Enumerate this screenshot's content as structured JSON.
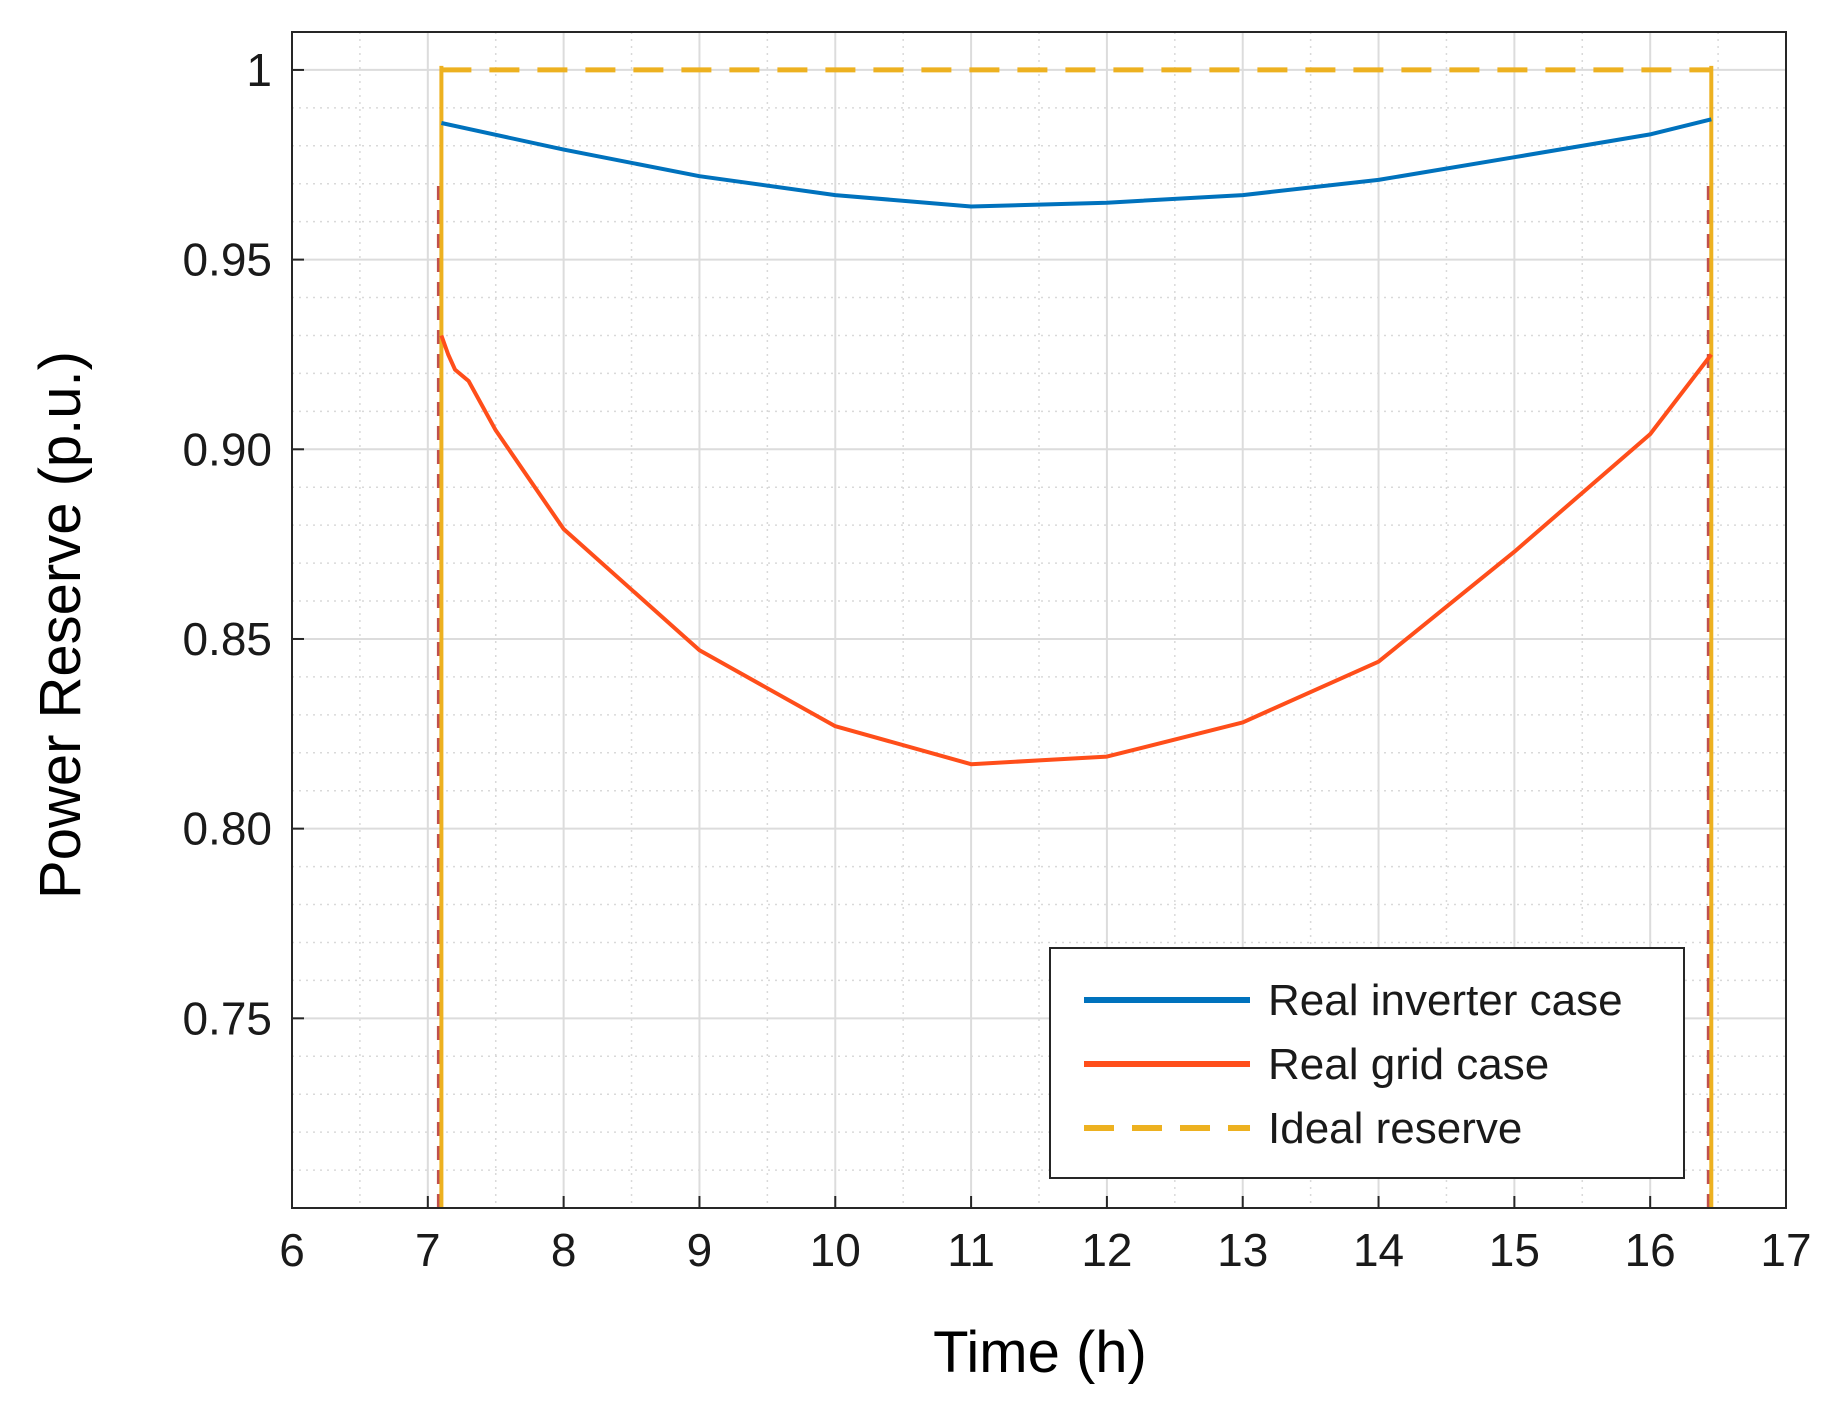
{
  "chart_data": {
    "type": "line",
    "title": "",
    "xlabel": "Time (h)",
    "ylabel": "Power Reserve (p.u.)",
    "xlim": [
      6,
      17
    ],
    "ylim": [
      0.7,
      1.01
    ],
    "x_ticks": [
      6,
      7,
      8,
      9,
      10,
      11,
      12,
      13,
      14,
      15,
      16,
      17
    ],
    "x_tick_labels": [
      "6",
      "7",
      "8",
      "9",
      "10",
      "11",
      "12",
      "13",
      "14",
      "15",
      "16",
      "17"
    ],
    "y_ticks": [
      0.75,
      0.8,
      0.85,
      0.9,
      0.95,
      1.0
    ],
    "y_tick_labels": [
      "0.75",
      "0.80",
      "0.85",
      "0.90",
      "0.95",
      "1"
    ],
    "grid": true,
    "minor_grid": true,
    "legend_position": "bottom-right",
    "series": [
      {
        "name": "Real inverter case",
        "color": "#0072BD",
        "style": "solid",
        "x": [
          7.1,
          8,
          9,
          10,
          11,
          12,
          13,
          14,
          15,
          16,
          16.45
        ],
        "y": [
          0.986,
          0.979,
          0.972,
          0.967,
          0.964,
          0.965,
          0.967,
          0.971,
          0.977,
          0.983,
          0.987
        ]
      },
      {
        "name": "Real grid case",
        "color": "#FF4E1A",
        "style": "solid",
        "x": [
          7.1,
          7.15,
          7.2,
          7.3,
          7.5,
          8,
          9,
          10,
          11,
          12,
          13,
          14,
          15,
          16,
          16.45
        ],
        "y": [
          0.93,
          0.925,
          0.921,
          0.918,
          0.905,
          0.879,
          0.847,
          0.827,
          0.817,
          0.819,
          0.828,
          0.844,
          0.873,
          0.904,
          0.925
        ]
      },
      {
        "name": "Ideal reserve",
        "color": "#EDB120",
        "style": "dashed",
        "x": [
          7.1,
          16.45
        ],
        "y": [
          1.0,
          1.0
        ]
      }
    ],
    "vertical_markers": [
      {
        "x": 7.1,
        "color": "#EDB120"
      },
      {
        "x": 16.45,
        "color": "#EDB120"
      }
    ]
  }
}
